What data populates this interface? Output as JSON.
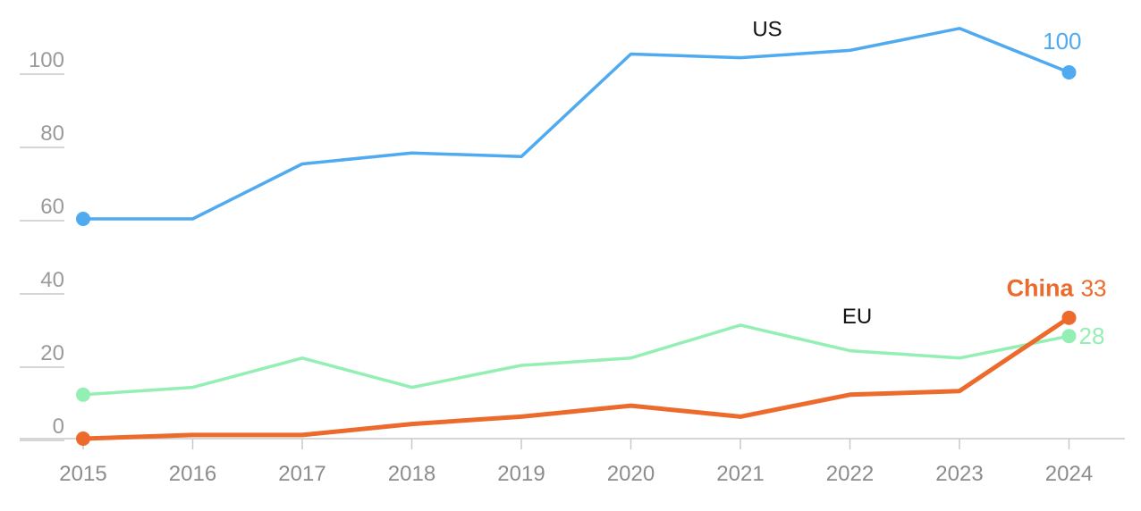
{
  "chart_data": {
    "type": "line",
    "x": [
      "2015",
      "2016",
      "2017",
      "2018",
      "2019",
      "2020",
      "2021",
      "2022",
      "2023",
      "2024"
    ],
    "yticks": [
      0,
      20,
      40,
      60,
      80,
      100
    ],
    "ylim": [
      0,
      110
    ],
    "grid": false,
    "series": [
      {
        "name": "US",
        "color": "#4faaf0",
        "values": [
          60,
          60,
          75,
          78,
          77,
          105,
          104,
          106,
          112,
          100
        ],
        "end_label": "100"
      },
      {
        "name": "EU",
        "color": "#93efb4",
        "values": [
          12,
          14,
          22,
          14,
          20,
          22,
          31,
          24,
          22,
          28
        ],
        "end_label": "28"
      },
      {
        "name": "China",
        "color": "#ec6a2c",
        "values": [
          0,
          1,
          1,
          4,
          6,
          9,
          6,
          12,
          13,
          33
        ],
        "end_label": "33"
      }
    ]
  }
}
